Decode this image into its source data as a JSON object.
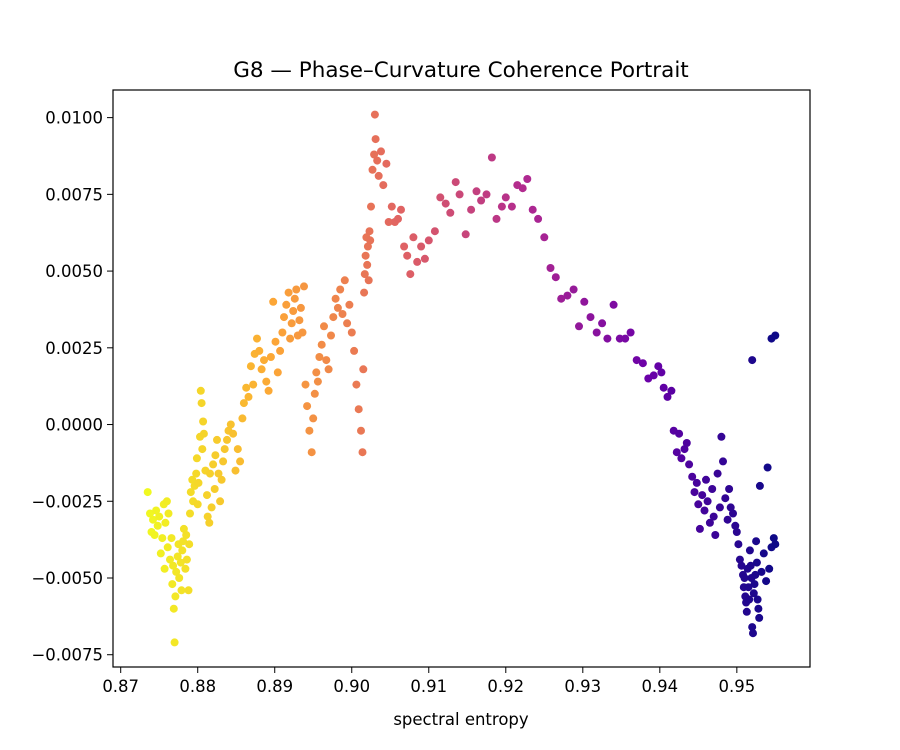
{
  "chart_data": {
    "type": "scatter",
    "title": "G8 — Phase–Curvature Coherence Portrait",
    "xlabel": "spectral entropy",
    "ylabel": "",
    "xlim": [
      0.869,
      0.9595
    ],
    "ylim": [
      -0.0079,
      0.0109
    ],
    "xticks": [
      0.87,
      0.88,
      0.89,
      0.9,
      0.91,
      0.92,
      0.93,
      0.94,
      0.95
    ],
    "xtick_labels": [
      "0.87",
      "0.88",
      "0.89",
      "0.90",
      "0.91",
      "0.92",
      "0.93",
      "0.94",
      "0.95"
    ],
    "yticks": [
      -0.0075,
      -0.005,
      -0.0025,
      0.0,
      0.0025,
      0.005,
      0.0075,
      0.01
    ],
    "ytick_labels": [
      "−0.0075",
      "−0.0050",
      "−0.0025",
      "0.0000",
      "0.0025",
      "0.0050",
      "0.0075",
      "0.0100"
    ],
    "grid": false,
    "legend": "none",
    "colormap": "plasma",
    "colormap_stops": [
      "#f0f921",
      "#fca636",
      "#e16462",
      "#b12a90",
      "#6a00a8",
      "#0d0887"
    ],
    "points": [
      [
        0.8735,
        -0.0022
      ],
      [
        0.8738,
        -0.0029
      ],
      [
        0.874,
        -0.0035
      ],
      [
        0.8742,
        -0.0031
      ],
      [
        0.8744,
        -0.0036
      ],
      [
        0.8746,
        -0.0028
      ],
      [
        0.8748,
        -0.0033
      ],
      [
        0.875,
        -0.003
      ],
      [
        0.8752,
        -0.0042
      ],
      [
        0.8754,
        -0.0037
      ],
      [
        0.8756,
        -0.0026
      ],
      [
        0.8757,
        -0.0047
      ],
      [
        0.8758,
        -0.0032
      ],
      [
        0.876,
        -0.0025
      ],
      [
        0.8761,
        -0.004
      ],
      [
        0.8762,
        -0.0029
      ],
      [
        0.8764,
        -0.0044
      ],
      [
        0.8766,
        -0.0037
      ],
      [
        0.8767,
        -0.0052
      ],
      [
        0.8768,
        -0.0046
      ],
      [
        0.8769,
        -0.006
      ],
      [
        0.877,
        -0.0071
      ],
      [
        0.8771,
        -0.0056
      ],
      [
        0.8772,
        -0.0048
      ],
      [
        0.8774,
        -0.0043
      ],
      [
        0.8775,
        -0.0039
      ],
      [
        0.8776,
        -0.005
      ],
      [
        0.8778,
        -0.0045
      ],
      [
        0.8779,
        -0.0054
      ],
      [
        0.878,
        -0.0041
      ],
      [
        0.8781,
        -0.0038
      ],
      [
        0.8782,
        -0.0034
      ],
      [
        0.8784,
        -0.0047
      ],
      [
        0.8785,
        -0.0036
      ],
      [
        0.8786,
        -0.0044
      ],
      [
        0.8788,
        -0.0054
      ],
      [
        0.8789,
        -0.0039
      ],
      [
        0.879,
        -0.0029
      ],
      [
        0.8791,
        -0.0022
      ],
      [
        0.8793,
        -0.0018
      ],
      [
        0.8794,
        -0.0025
      ],
      [
        0.8796,
        -0.002
      ],
      [
        0.8798,
        -0.0016
      ],
      [
        0.8799,
        -0.0011
      ],
      [
        0.88,
        -0.0026
      ],
      [
        0.8801,
        -0.0019
      ],
      [
        0.8803,
        -0.0004
      ],
      [
        0.8804,
        0.0011
      ],
      [
        0.8805,
        0.0007
      ],
      [
        0.8806,
        -0.0008
      ],
      [
        0.8807,
        0.0001
      ],
      [
        0.8808,
        -0.0003
      ],
      [
        0.881,
        -0.0015
      ],
      [
        0.8812,
        -0.0023
      ],
      [
        0.8813,
        -0.003
      ],
      [
        0.8815,
        -0.0032
      ],
      [
        0.8816,
        -0.0016
      ],
      [
        0.8818,
        -0.0027
      ],
      [
        0.882,
        -0.0013
      ],
      [
        0.8822,
        -0.0021
      ],
      [
        0.8823,
        -0.001
      ],
      [
        0.8825,
        -0.0005
      ],
      [
        0.8827,
        -0.0016
      ],
      [
        0.8829,
        -0.0025
      ],
      [
        0.8831,
        -0.0018
      ],
      [
        0.8833,
        -0.0012
      ],
      [
        0.8835,
        -0.0008
      ],
      [
        0.8838,
        -0.0005
      ],
      [
        0.884,
        -0.0002
      ],
      [
        0.8843,
        0.0
      ],
      [
        0.8846,
        -0.0003
      ],
      [
        0.8849,
        -0.0015
      ],
      [
        0.8852,
        -0.0008
      ],
      [
        0.8855,
        -0.0012
      ],
      [
        0.8858,
        0.0002
      ],
      [
        0.886,
        0.0007
      ],
      [
        0.8863,
        0.0012
      ],
      [
        0.8866,
        0.0009
      ],
      [
        0.8869,
        0.0019
      ],
      [
        0.8872,
        0.0013
      ],
      [
        0.8874,
        0.0023
      ],
      [
        0.8877,
        0.0028
      ],
      [
        0.888,
        0.0024
      ],
      [
        0.8883,
        0.0018
      ],
      [
        0.8886,
        0.0021
      ],
      [
        0.8889,
        0.0014
      ],
      [
        0.8892,
        0.0011
      ],
      [
        0.8895,
        0.0022
      ],
      [
        0.8898,
        0.004
      ],
      [
        0.8901,
        0.0027
      ],
      [
        0.8904,
        0.0017
      ],
      [
        0.8907,
        0.0024
      ],
      [
        0.891,
        0.003
      ],
      [
        0.8912,
        0.0035
      ],
      [
        0.8915,
        0.0039
      ],
      [
        0.8918,
        0.0043
      ],
      [
        0.892,
        0.0028
      ],
      [
        0.8922,
        0.0033
      ],
      [
        0.8924,
        0.0037
      ],
      [
        0.8926,
        0.0041
      ],
      [
        0.8928,
        0.0044
      ],
      [
        0.893,
        0.0029
      ],
      [
        0.8932,
        0.0034
      ],
      [
        0.8934,
        0.0038
      ],
      [
        0.8936,
        0.003
      ],
      [
        0.8938,
        0.0045
      ],
      [
        0.894,
        0.0013
      ],
      [
        0.8942,
        0.0006
      ],
      [
        0.8945,
        -0.0002
      ],
      [
        0.8948,
        -0.0009
      ],
      [
        0.895,
        0.0002
      ],
      [
        0.8952,
        0.001
      ],
      [
        0.8954,
        0.0017
      ],
      [
        0.8956,
        0.0014
      ],
      [
        0.8958,
        0.0022
      ],
      [
        0.8961,
        0.0026
      ],
      [
        0.8964,
        0.0032
      ],
      [
        0.8967,
        0.0021
      ],
      [
        0.897,
        0.0018
      ],
      [
        0.8973,
        0.0029
      ],
      [
        0.8976,
        0.0035
      ],
      [
        0.8979,
        0.0041
      ],
      [
        0.8982,
        0.0038
      ],
      [
        0.8985,
        0.0044
      ],
      [
        0.8988,
        0.0036
      ],
      [
        0.8991,
        0.0047
      ],
      [
        0.8994,
        0.0033
      ],
      [
        0.8997,
        0.0039
      ],
      [
        0.9,
        0.003
      ],
      [
        0.9003,
        0.0024
      ],
      [
        0.9006,
        0.0013
      ],
      [
        0.9009,
        0.0005
      ],
      [
        0.9012,
        -0.0002
      ],
      [
        0.9014,
        -0.0009
      ],
      [
        0.9015,
        0.0018
      ],
      [
        0.9016,
        0.0043
      ],
      [
        0.9017,
        0.0049
      ],
      [
        0.9018,
        0.0055
      ],
      [
        0.9019,
        0.0061
      ],
      [
        0.902,
        0.0052
      ],
      [
        0.9021,
        0.0058
      ],
      [
        0.9022,
        0.0047
      ],
      [
        0.9023,
        0.0063
      ],
      [
        0.9024,
        0.006
      ],
      [
        0.9025,
        0.0071
      ],
      [
        0.9027,
        0.0083
      ],
      [
        0.9029,
        0.0088
      ],
      [
        0.903,
        0.0101
      ],
      [
        0.9031,
        0.0093
      ],
      [
        0.9033,
        0.0086
      ],
      [
        0.9035,
        0.0081
      ],
      [
        0.9038,
        0.0089
      ],
      [
        0.9041,
        0.0078
      ],
      [
        0.9045,
        0.0085
      ],
      [
        0.9048,
        0.0066
      ],
      [
        0.9052,
        0.0071
      ],
      [
        0.9056,
        0.0066
      ],
      [
        0.906,
        0.0067
      ],
      [
        0.9064,
        0.007
      ],
      [
        0.9068,
        0.0058
      ],
      [
        0.9072,
        0.0055
      ],
      [
        0.9076,
        0.0049
      ],
      [
        0.908,
        0.0061
      ],
      [
        0.9085,
        0.0053
      ],
      [
        0.909,
        0.0058
      ],
      [
        0.9095,
        0.0054
      ],
      [
        0.91,
        0.006
      ],
      [
        0.9108,
        0.0063
      ],
      [
        0.9115,
        0.0074
      ],
      [
        0.9122,
        0.0072
      ],
      [
        0.9128,
        0.0069
      ],
      [
        0.9135,
        0.0079
      ],
      [
        0.914,
        0.0075
      ],
      [
        0.9148,
        0.0062
      ],
      [
        0.9155,
        0.007
      ],
      [
        0.9162,
        0.0076
      ],
      [
        0.9168,
        0.0073
      ],
      [
        0.9175,
        0.0075
      ],
      [
        0.9182,
        0.0087
      ],
      [
        0.9188,
        0.0067
      ],
      [
        0.9195,
        0.0071
      ],
      [
        0.92,
        0.0074
      ],
      [
        0.9208,
        0.0071
      ],
      [
        0.9215,
        0.0078
      ],
      [
        0.9222,
        0.0077
      ],
      [
        0.9228,
        0.008
      ],
      [
        0.9235,
        0.007
      ],
      [
        0.9242,
        0.0067
      ],
      [
        0.925,
        0.0061
      ],
      [
        0.9258,
        0.0051
      ],
      [
        0.9265,
        0.0048
      ],
      [
        0.9272,
        0.0041
      ],
      [
        0.928,
        0.0042
      ],
      [
        0.9288,
        0.0044
      ],
      [
        0.9295,
        0.0032
      ],
      [
        0.9302,
        0.004
      ],
      [
        0.931,
        0.0035
      ],
      [
        0.9318,
        0.003
      ],
      [
        0.9325,
        0.0033
      ],
      [
        0.9332,
        0.0028
      ],
      [
        0.934,
        0.0039
      ],
      [
        0.9348,
        0.0028
      ],
      [
        0.9355,
        0.0028
      ],
      [
        0.9362,
        0.003
      ],
      [
        0.937,
        0.0021
      ],
      [
        0.9378,
        0.002
      ],
      [
        0.9385,
        0.0015
      ],
      [
        0.9392,
        0.0016
      ],
      [
        0.9398,
        0.0019
      ],
      [
        0.9402,
        0.0017
      ],
      [
        0.9405,
        0.0012
      ],
      [
        0.941,
        0.0009
      ],
      [
        0.9415,
        0.0011
      ],
      [
        0.9418,
        -0.0002
      ],
      [
        0.9422,
        -0.0009
      ],
      [
        0.9425,
        -0.0003
      ],
      [
        0.9428,
        -0.0011
      ],
      [
        0.9432,
        -0.0008
      ],
      [
        0.9435,
        -0.0006
      ],
      [
        0.9438,
        -0.0013
      ],
      [
        0.9442,
        -0.0017
      ],
      [
        0.9445,
        -0.0022
      ],
      [
        0.9448,
        -0.0019
      ],
      [
        0.945,
        -0.0026
      ],
      [
        0.9452,
        -0.0034
      ],
      [
        0.9455,
        -0.0023
      ],
      [
        0.9458,
        -0.0028
      ],
      [
        0.946,
        -0.0018
      ],
      [
        0.9462,
        -0.0025
      ],
      [
        0.9465,
        -0.0032
      ],
      [
        0.9468,
        -0.0021
      ],
      [
        0.947,
        -0.003
      ],
      [
        0.9472,
        -0.0036
      ],
      [
        0.9475,
        -0.0016
      ],
      [
        0.9478,
        -0.0027
      ],
      [
        0.948,
        -0.0004
      ],
      [
        0.9482,
        -0.0012
      ],
      [
        0.9485,
        -0.0024
      ],
      [
        0.9488,
        -0.0031
      ],
      [
        0.949,
        -0.0021
      ],
      [
        0.9492,
        -0.0027
      ],
      [
        0.9495,
        -0.0029
      ],
      [
        0.9498,
        -0.0033
      ],
      [
        0.95,
        -0.0035
      ],
      [
        0.9502,
        -0.0039
      ],
      [
        0.9504,
        -0.0044
      ],
      [
        0.9506,
        -0.0046
      ],
      [
        0.9508,
        -0.0049
      ],
      [
        0.9509,
        -0.0053
      ],
      [
        0.951,
        -0.005
      ],
      [
        0.9511,
        -0.0056
      ],
      [
        0.9512,
        -0.0058
      ],
      [
        0.9513,
        -0.0061
      ],
      [
        0.9514,
        -0.0047
      ],
      [
        0.9515,
        -0.0053
      ],
      [
        0.9516,
        -0.0057
      ],
      [
        0.9517,
        -0.0041
      ],
      [
        0.9518,
        -0.0046
      ],
      [
        0.9519,
        -0.005
      ],
      [
        0.952,
        -0.0066
      ],
      [
        0.9521,
        -0.0068
      ],
      [
        0.9522,
        -0.0055
      ],
      [
        0.9523,
        -0.0052
      ],
      [
        0.9524,
        -0.0049
      ],
      [
        0.9525,
        -0.0038
      ],
      [
        0.9526,
        -0.0045
      ],
      [
        0.9527,
        -0.0057
      ],
      [
        0.9528,
        -0.006
      ],
      [
        0.9529,
        -0.0063
      ],
      [
        0.953,
        -0.002
      ],
      [
        0.9532,
        -0.0048
      ],
      [
        0.9535,
        -0.0042
      ],
      [
        0.9538,
        -0.0051
      ],
      [
        0.954,
        -0.0014
      ],
      [
        0.9542,
        -0.0047
      ],
      [
        0.9545,
        -0.004
      ],
      [
        0.9548,
        -0.0037
      ],
      [
        0.955,
        -0.0039
      ],
      [
        0.952,
        0.0021
      ],
      [
        0.9545,
        0.0028
      ],
      [
        0.955,
        0.0029
      ]
    ]
  }
}
